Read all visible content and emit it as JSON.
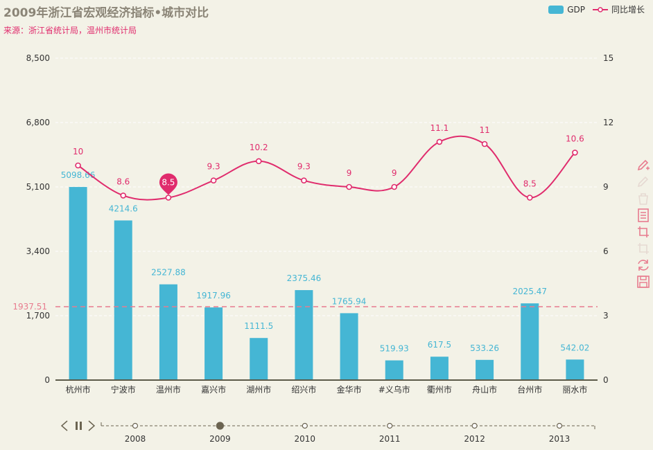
{
  "title": "2009年浙江省宏观经济指标•城市对比",
  "subtitle": "来源：浙江省统计局，温州市统计局",
  "legend": {
    "gdp": "GDP",
    "growth": "同比增长"
  },
  "colors": {
    "bar": "#45b6d4",
    "line": "#e02c6d",
    "markline": "#e87b8e",
    "axis": "#5a5a48",
    "text": "#333333",
    "timeline": "#6b6451"
  },
  "icons": [
    "mark-icon",
    "mark-undo-icon",
    "mark-clear-icon",
    "data-view-icon",
    "zoom-icon",
    "zoom-reset-icon",
    "restore-icon",
    "save-image-icon"
  ],
  "chart_data": {
    "type": "bar",
    "categories": [
      "杭州市",
      "宁波市",
      "温州市",
      "嘉兴市",
      "湖州市",
      "绍兴市",
      "金华市",
      "#义乌市",
      "衢州市",
      "舟山市",
      "台州市",
      "丽水市"
    ],
    "series": [
      {
        "name": "GDP",
        "type": "bar",
        "axis": "left",
        "values": [
          5098.66,
          4214.6,
          2527.88,
          1917.96,
          1111.5,
          2375.46,
          1765.94,
          519.93,
          617.5,
          533.26,
          2025.47,
          542.02
        ]
      },
      {
        "name": "同比增长",
        "type": "line",
        "axis": "right",
        "values": [
          10,
          8.6,
          8.5,
          9.3,
          10.2,
          9.3,
          9,
          9,
          11.1,
          11,
          8.5,
          10.6
        ]
      }
    ],
    "y_left": {
      "ticks": [
        "0",
        "1,700",
        "3,400",
        "5,100",
        "6,800",
        "8,500"
      ],
      "tick_values": [
        0,
        1700,
        3400,
        5100,
        6800,
        8500
      ],
      "range": [
        0,
        8500
      ]
    },
    "y_right": {
      "ticks": [
        "0",
        "3",
        "6",
        "9",
        "12",
        "15"
      ],
      "tick_values": [
        0,
        3,
        6,
        9,
        12,
        15
      ],
      "range": [
        0,
        15
      ]
    },
    "mark_line": {
      "value": 1937.51,
      "label": "1937.51"
    },
    "mark_point": {
      "category": "温州市",
      "value": 8.5,
      "label": "8.5"
    },
    "timeline": {
      "years": [
        "2008",
        "2009",
        "2010",
        "2011",
        "2012",
        "2013"
      ],
      "current": "2009"
    }
  }
}
